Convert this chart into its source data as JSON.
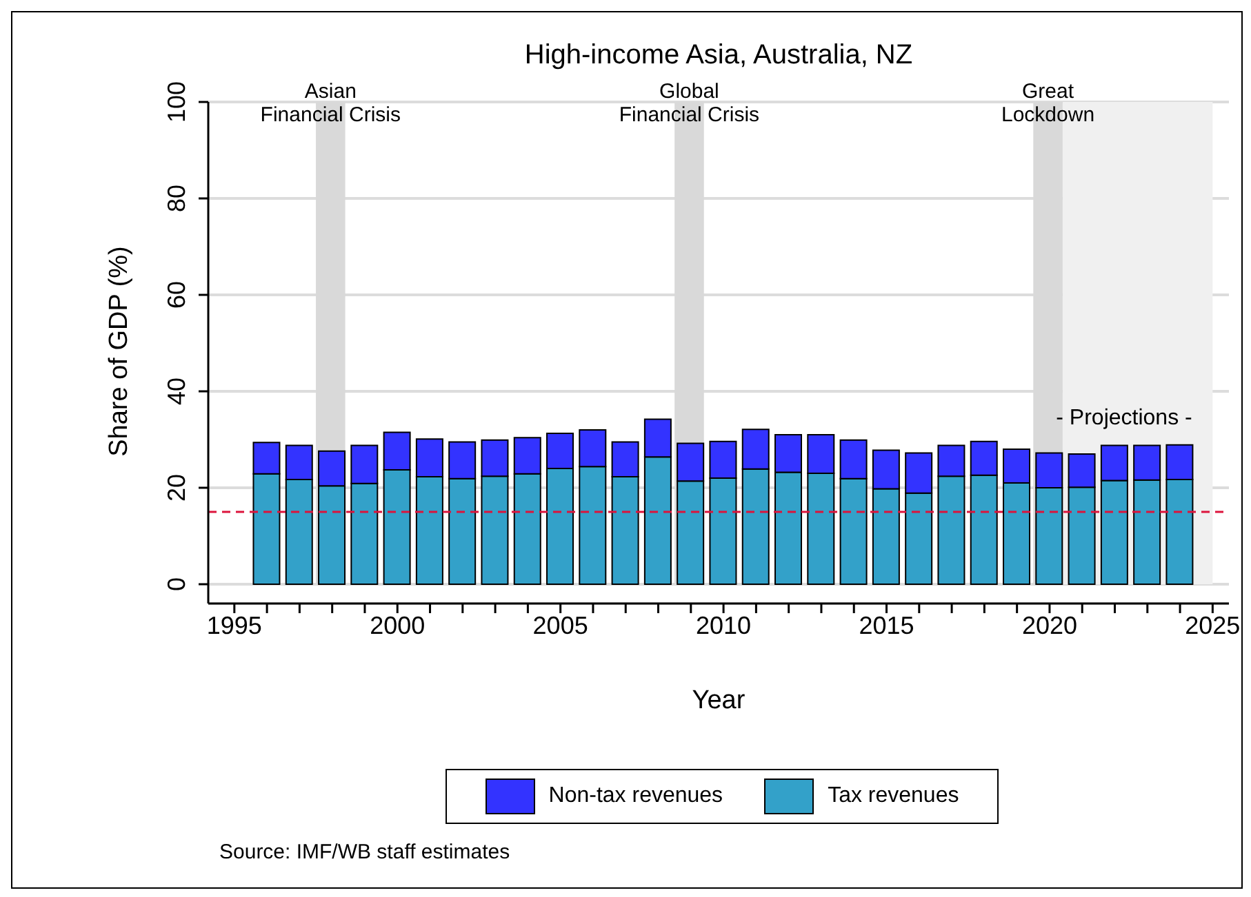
{
  "chart_data": {
    "type": "bar",
    "title": "High-income Asia, Australia, NZ",
    "xlabel": "Year",
    "ylabel": "Share of GDP (%)",
    "x": [
      1996,
      1997,
      1998,
      1999,
      2000,
      2001,
      2002,
      2003,
      2004,
      2005,
      2006,
      2007,
      2008,
      2009,
      2010,
      2011,
      2012,
      2013,
      2014,
      2015,
      2016,
      2017,
      2018,
      2019,
      2020,
      2021,
      2022,
      2023,
      2024
    ],
    "stacked": true,
    "series": [
      {
        "name": "Tax revenues",
        "color": "#33a1c9",
        "values": [
          22.9,
          21.7,
          20.4,
          20.9,
          23.7,
          22.3,
          21.9,
          22.4,
          22.9,
          24.0,
          24.4,
          22.3,
          26.4,
          21.4,
          22.0,
          23.9,
          23.2,
          23.0,
          21.9,
          19.8,
          18.9,
          22.4,
          22.6,
          21.0,
          20.0,
          20.1,
          21.5,
          21.6,
          21.7
        ]
      },
      {
        "name": "Non-tax revenues",
        "color": "#3333ff",
        "values": [
          6.5,
          7.1,
          7.2,
          7.9,
          7.8,
          7.8,
          7.6,
          7.5,
          7.5,
          7.3,
          7.6,
          7.2,
          7.8,
          7.8,
          7.6,
          8.2,
          7.8,
          8.0,
          8.0,
          8.0,
          8.3,
          6.4,
          7.0,
          7.0,
          7.2,
          6.9,
          7.3,
          7.2,
          7.2
        ]
      }
    ],
    "xlim": [
      1994.2,
      2025.5
    ],
    "xticks": [
      1995,
      {
        "value": 1996,
        "label": null
      },
      {
        "value": 1997,
        "label": null
      },
      {
        "value": 1998,
        "label": null
      },
      {
        "value": 1999,
        "label": null
      },
      2000,
      {
        "value": 2001,
        "label": null
      },
      {
        "value": 2002,
        "label": null
      },
      {
        "value": 2003,
        "label": null
      },
      {
        "value": 2004,
        "label": null
      },
      2005,
      {
        "value": 2006,
        "label": null
      },
      {
        "value": 2007,
        "label": null
      },
      {
        "value": 2008,
        "label": null
      },
      {
        "value": 2009,
        "label": null
      },
      2010,
      {
        "value": 2011,
        "label": null
      },
      {
        "value": 2012,
        "label": null
      },
      {
        "value": 2013,
        "label": null
      },
      {
        "value": 2014,
        "label": null
      },
      2015,
      {
        "value": 2016,
        "label": null
      },
      {
        "value": 2017,
        "label": null
      },
      {
        "value": 2018,
        "label": null
      },
      {
        "value": 2019,
        "label": null
      },
      2020,
      {
        "value": 2021,
        "label": null
      },
      {
        "value": 2022,
        "label": null
      },
      {
        "value": 2023,
        "label": null
      },
      {
        "value": 2024,
        "label": null
      },
      2025
    ],
    "ylim": [
      -4,
      100
    ],
    "yticks": [
      0,
      20,
      40,
      60,
      80,
      100
    ],
    "grid": "y",
    "legend": "bottom",
    "ref_lines": [
      {
        "axis": "y",
        "value": 15,
        "color": "#dc143c",
        "line_style": "dashed"
      }
    ],
    "bands": [
      {
        "axis": "x",
        "from": 1997.5,
        "to": 1998.4,
        "label": "Asian\nFinancial Crisis",
        "color": "#d9d9d9"
      },
      {
        "axis": "x",
        "from": 2008.5,
        "to": 2009.4,
        "label": "Global\nFinancial Crisis",
        "color": "#d9d9d9"
      },
      {
        "axis": "x",
        "from": 2019.5,
        "to": 2020.4,
        "label": "Great\nLockdown",
        "color": "#d9d9d9"
      },
      {
        "axis": "x",
        "from": 2020.4,
        "to": 2025,
        "color": "#f0f0f0"
      }
    ],
    "annotations": [
      "- Projections -",
      "Source: IMF/WB staff estimates"
    ]
  }
}
